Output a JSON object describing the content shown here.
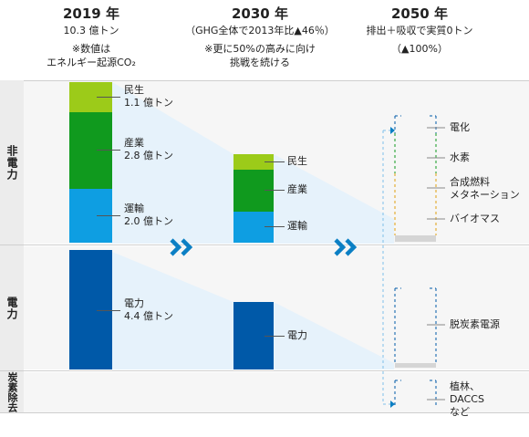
{
  "headers": {
    "y2019": {
      "year": "2019 年",
      "sub1": "10.3 億トン",
      "sub2": "※数値は",
      "sub3": "エネルギー起源CO₂"
    },
    "y2030": {
      "year": "2030 年",
      "sub1": "（GHG全体で2013年比▲46％）",
      "sub2": "※更に50%の高みに向け",
      "sub3": "挑戦を続ける"
    },
    "y2050": {
      "year": "2050 年",
      "sub1": "排出＋吸収で実質0トン",
      "sub2": "（▲100%）"
    }
  },
  "rows": {
    "non_power": "非電力",
    "power": "電力",
    "removal": "炭素除去"
  },
  "bars_2019": {
    "minsei": {
      "label": "民生",
      "value": "1.1 億トン"
    },
    "sangyo": {
      "label": "産業",
      "value": "2.8 億トン"
    },
    "unyu": {
      "label": "運輸",
      "value": "2.0 億トン"
    },
    "denryoku": {
      "label": "電力",
      "value": "4.4 億トン"
    }
  },
  "bars_2030": {
    "minsei": "民生",
    "sangyo": "産業",
    "unyu": "運輸",
    "denryoku": "電力"
  },
  "measures_2050": {
    "non_power": [
      "電化",
      "水素",
      "合成燃料",
      "メタネーション",
      "バイオマス"
    ],
    "power": "脱炭素電源",
    "removal": [
      "植林、",
      "DACCS",
      "など"
    ]
  },
  "colors": {
    "minsei": "#9ccb19",
    "sangyo": "#109a1e",
    "unyu": "#0e9ee2",
    "denryoku": "#0059a8",
    "chevron": "#0b7fc4"
  }
}
